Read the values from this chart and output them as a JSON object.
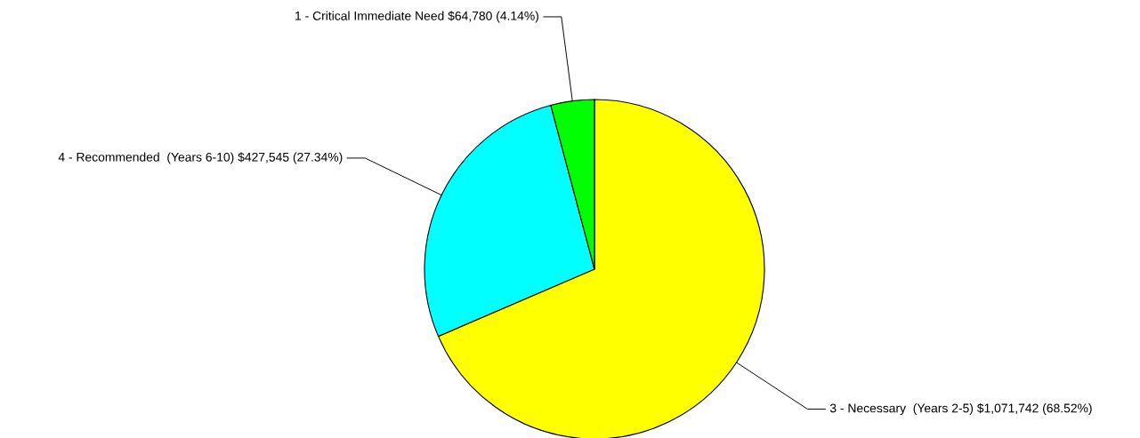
{
  "chart_data": {
    "type": "pie",
    "categories": [
      "3 - Necessary  (Years 2-5)",
      "4 - Recommended  (Years 6-10)",
      "1 - Critical Immediate Need"
    ],
    "values": [
      1071742,
      427545,
      64780
    ],
    "colors": [
      "#ffff00",
      "#00ffff",
      "#00ff00"
    ],
    "value_labels": [
      "$1,071,742 (68.52%)",
      "$427,545 (27.34%)",
      "$64,780 (4.14%)"
    ]
  }
}
